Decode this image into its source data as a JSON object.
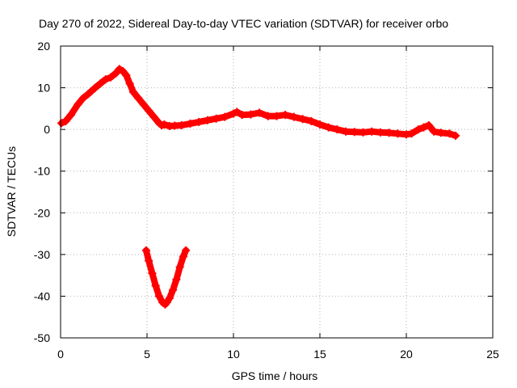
{
  "chart_data": {
    "type": "scatter",
    "title": "Day 270 of 2022, Sidereal Day-to-day VTEC variation (SDTVAR) for receiver orbo",
    "xlabel": "GPS time / hours",
    "ylabel": "SDTVAR / TECUs",
    "xlim": [
      0,
      25
    ],
    "ylim": [
      -50,
      20
    ],
    "xticks": [
      0,
      5,
      10,
      15,
      20,
      25
    ],
    "yticks": [
      -50,
      -40,
      -30,
      -20,
      -10,
      0,
      10,
      20
    ],
    "xtick_labels": [
      "0",
      "5",
      "10",
      "15",
      "20",
      "25"
    ],
    "ytick_labels": [
      "-50",
      "-40",
      "-30",
      "-20",
      "-10",
      "0",
      "10",
      "20"
    ],
    "grid": true,
    "marker": "plus",
    "series": [
      {
        "name": "main trace",
        "color": "#ff0000",
        "x": [
          0.05,
          0.3,
          0.6,
          1.0,
          1.3,
          1.6,
          2.0,
          2.3,
          2.6,
          2.9,
          3.2,
          3.4,
          3.6,
          3.8,
          4.0,
          4.2,
          4.5,
          4.8,
          5.1,
          5.4,
          5.7,
          5.85,
          6.0,
          6.3,
          6.6,
          7.0,
          7.5,
          8.0,
          8.5,
          9.0,
          9.5,
          10.0,
          10.2,
          10.5,
          11.0,
          11.5,
          12.0,
          12.5,
          13.0,
          13.5,
          14.0,
          14.5,
          15.0,
          15.5,
          16.0,
          16.5,
          17.0,
          17.5,
          18.0,
          18.5,
          19.0,
          19.5,
          20.0,
          20.3,
          20.7,
          21.0,
          21.3,
          21.6,
          22.0,
          22.5,
          22.85
        ],
        "y": [
          1.5,
          2.0,
          3.5,
          6.0,
          7.5,
          8.5,
          10.0,
          11.0,
          12.0,
          12.5,
          13.5,
          14.5,
          14.0,
          13.0,
          11.0,
          9.0,
          7.5,
          6.0,
          4.5,
          3.0,
          1.5,
          1.0,
          1.2,
          0.8,
          0.9,
          1.0,
          1.4,
          1.8,
          2.2,
          2.6,
          3.0,
          3.8,
          4.2,
          3.5,
          3.6,
          4.0,
          3.2,
          3.2,
          3.5,
          3.0,
          2.5,
          2.0,
          1.2,
          0.5,
          0.0,
          -0.5,
          -0.6,
          -0.7,
          -0.5,
          -0.7,
          -0.8,
          -1.0,
          -1.2,
          -1.0,
          0.0,
          0.5,
          1.0,
          -0.5,
          -0.8,
          -1.0,
          -1.5
        ]
      },
      {
        "name": "V-shaped segment",
        "color": "#ff0000",
        "x": [
          4.95,
          5.1,
          5.3,
          5.5,
          5.7,
          5.9,
          6.05,
          6.15,
          6.3,
          6.5,
          6.7,
          6.9,
          7.1,
          7.25
        ],
        "y": [
          -29.0,
          -31.5,
          -34.5,
          -37.5,
          -40.0,
          -41.5,
          -42.0,
          -41.5,
          -40.5,
          -38.5,
          -36.0,
          -33.0,
          -30.5,
          -29.0
        ]
      }
    ]
  },
  "colors": {
    "series": "#ff0000",
    "grid": "#b0b0b0",
    "axes": "#000000",
    "background": "#ffffff"
  }
}
